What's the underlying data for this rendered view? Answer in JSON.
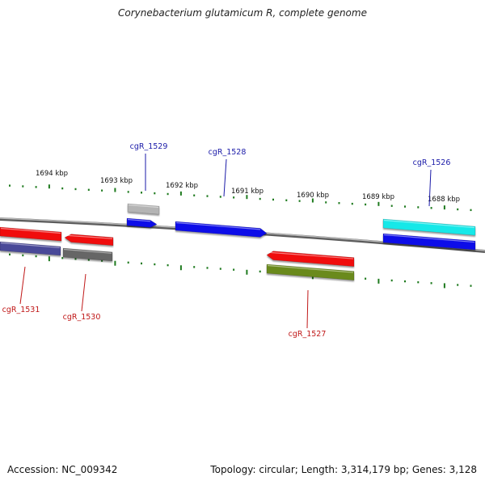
{
  "title": "Corynebacterium glutamicum R, complete genome",
  "footer": {
    "accession": "Accession: NC_009342",
    "summary": "Topology: circular; Length: 3,314,179 bp; Genes: 3,128"
  },
  "colors": {
    "backbone": "#8a8a8a",
    "tick": "#1e7a1e",
    "scale_label": "#111111",
    "forward_label": "#1a1aa8",
    "reverse_label": "#c01818"
  },
  "scale_ticks": [
    {
      "label": "1694 kbp"
    },
    {
      "label": "1693 kbp"
    },
    {
      "label": "1692 kbp"
    },
    {
      "label": "1691 kbp"
    },
    {
      "label": "1690 kbp"
    },
    {
      "label": "1689 kbp"
    },
    {
      "label": "1688 kbp"
    }
  ],
  "features": [
    {
      "id": "fwd-blue-a",
      "strand": "forward",
      "color": "#1010e8"
    },
    {
      "id": "fwd-blue-b",
      "strand": "forward",
      "color": "#1010e8"
    },
    {
      "id": "fwd-cyan",
      "strand": "forward",
      "color": "#18e8e8"
    },
    {
      "id": "fwd-blue-c",
      "strand": "forward",
      "color": "#1010e8"
    },
    {
      "id": "fwd-gray",
      "strand": "forward",
      "color": "#b4b4b4"
    },
    {
      "id": "rev-red-a",
      "strand": "reverse",
      "color": "#f01010"
    },
    {
      "id": "rev-red-b",
      "strand": "reverse",
      "color": "#f01010"
    },
    {
      "id": "rev-red-c",
      "strand": "reverse",
      "color": "#f01010"
    },
    {
      "id": "rev-purple",
      "strand": "reverse",
      "color": "#4a4898"
    },
    {
      "id": "rev-gray",
      "strand": "reverse",
      "color": "#666666"
    },
    {
      "id": "rev-olive",
      "strand": "reverse",
      "color": "#6a8a1a"
    }
  ],
  "gene_labels": [
    {
      "name": "cgR_1529",
      "strand": "forward"
    },
    {
      "name": "cgR_1528",
      "strand": "forward"
    },
    {
      "name": "cgR_1526",
      "strand": "forward"
    },
    {
      "name": "cgR_1531",
      "strand": "reverse"
    },
    {
      "name": "cgR_1530",
      "strand": "reverse"
    },
    {
      "name": "cgR_1527",
      "strand": "reverse"
    }
  ]
}
